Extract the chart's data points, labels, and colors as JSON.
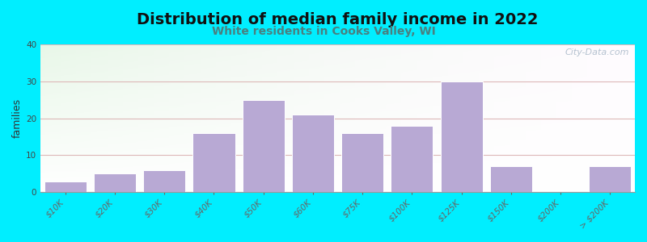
{
  "title": "Distribution of median family income in 2022",
  "subtitle": "White residents in Cooks Valley, WI",
  "ylabel": "families",
  "categories": [
    "$10K",
    "$20K",
    "$30K",
    "$40K",
    "$50K",
    "$60K",
    "$75K",
    "$100K",
    "$125K",
    "$150K",
    "$200K",
    "> $200K"
  ],
  "values": [
    3,
    5,
    6,
    16,
    25,
    21,
    16,
    18,
    30,
    7,
    0,
    7
  ],
  "bar_color": "#b8a9d4",
  "bar_edge_color": "#ffffff",
  "ylim": [
    0,
    40
  ],
  "yticks": [
    0,
    10,
    20,
    30,
    40
  ],
  "background_outer": "#00eeff",
  "background_plot_topleft": "#d8ecd0",
  "background_plot_white": "#ffffff",
  "grid_color": "#ddb8b8",
  "title_fontsize": 14,
  "subtitle_fontsize": 10,
  "subtitle_color": "#4a8080",
  "ylabel_fontsize": 9,
  "tick_fontsize": 7.5,
  "watermark_text": "City-Data.com",
  "watermark_color": "#a8b8c8"
}
